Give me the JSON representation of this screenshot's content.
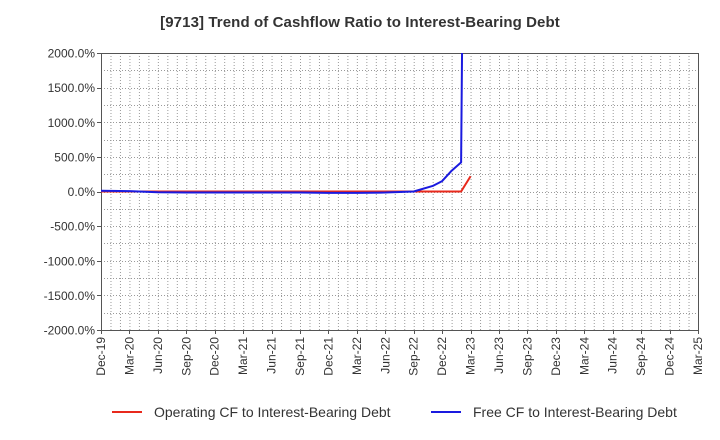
{
  "chart_data": {
    "type": "line",
    "title": "[9713]  Trend of Cashflow Ratio to Interest-Bearing Debt",
    "xlabel": "",
    "ylabel": "",
    "ylim": [
      -2000,
      2000
    ],
    "y_ticks": [
      2000,
      1500,
      1000,
      500,
      0,
      -500,
      -1000,
      -1500,
      -2000
    ],
    "y_tick_labels": [
      "2000.0%",
      "1500.0%",
      "1000.0%",
      "500.0%",
      "0.0%",
      "-500.0%",
      "-1000.0%",
      "-1500.0%",
      "-2000.0%"
    ],
    "x_tick_labels": [
      "Dec-19",
      "Mar-20",
      "Jun-20",
      "Sep-20",
      "Dec-20",
      "Mar-21",
      "Jun-21",
      "Sep-21",
      "Dec-21",
      "Mar-22",
      "Jun-22",
      "Sep-22",
      "Dec-22",
      "Mar-23",
      "Jun-23",
      "Sep-23",
      "Dec-23",
      "Mar-24",
      "Jun-24",
      "Sep-24",
      "Dec-24",
      "Mar-25"
    ],
    "x_range_months": [
      0,
      63
    ],
    "grid": true,
    "legend_position": "bottom",
    "series": [
      {
        "name": "Operating CF to Interest-Bearing Debt",
        "color": "#e8291c",
        "points": [
          [
            0,
            0
          ],
          [
            3,
            0
          ],
          [
            6,
            0
          ],
          [
            9,
            0
          ],
          [
            12,
            0
          ],
          [
            15,
            0
          ],
          [
            18,
            0
          ],
          [
            21,
            0
          ],
          [
            24,
            0
          ],
          [
            27,
            0
          ],
          [
            30,
            0
          ],
          [
            33,
            0
          ],
          [
            36,
            0
          ],
          [
            38,
            0
          ],
          [
            39,
            220
          ]
        ]
      },
      {
        "name": "Free CF to Interest-Bearing Debt",
        "color": "#1a1adf",
        "points": [
          [
            0,
            10
          ],
          [
            3,
            5
          ],
          [
            6,
            -10
          ],
          [
            9,
            -15
          ],
          [
            12,
            -15
          ],
          [
            15,
            -15
          ],
          [
            18,
            -15
          ],
          [
            21,
            -15
          ],
          [
            24,
            -20
          ],
          [
            27,
            -20
          ],
          [
            30,
            -15
          ],
          [
            33,
            0
          ],
          [
            35,
            80
          ],
          [
            36,
            150
          ],
          [
            37,
            300
          ],
          [
            38,
            420
          ],
          [
            38.1,
            2000
          ]
        ]
      }
    ]
  }
}
